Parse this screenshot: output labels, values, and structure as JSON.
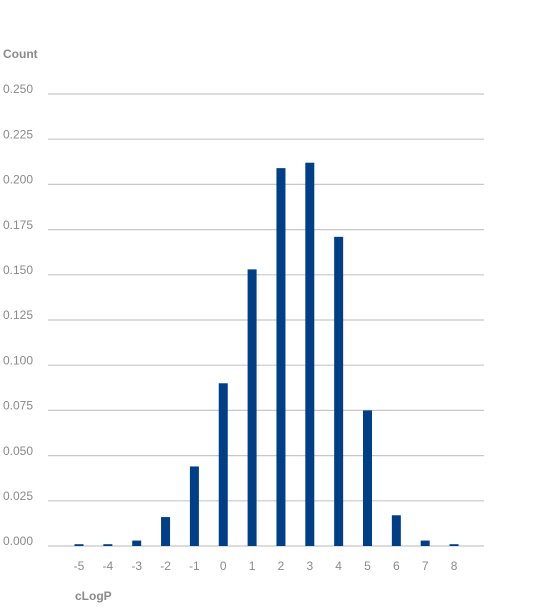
{
  "chart_data": {
    "type": "bar",
    "y_label": "Count",
    "x_label": "cLogP",
    "categories": [
      "-5",
      "-4",
      "-3",
      "-2",
      "-1",
      "0",
      "1",
      "2",
      "3",
      "4",
      "5",
      "6",
      "7",
      "8"
    ],
    "values": [
      0.001,
      0.001,
      0.003,
      0.016,
      0.044,
      0.09,
      0.153,
      0.209,
      0.212,
      0.171,
      0.075,
      0.017,
      0.003,
      0.001
    ],
    "color": "#003f87",
    "ylim": [
      0,
      0.25
    ],
    "yticks": [
      {
        "value": 0,
        "label": "0.000"
      },
      {
        "value": 0.025,
        "label": "0.025"
      },
      {
        "value": 0.05,
        "label": "0.050"
      },
      {
        "value": 0.075,
        "label": "0.075"
      },
      {
        "value": 0.1,
        "label": "0.100"
      },
      {
        "value": 0.125,
        "label": "0.125"
      },
      {
        "value": 0.15,
        "label": "0.150"
      },
      {
        "value": 0.175,
        "label": "0.175"
      },
      {
        "value": 0.2,
        "label": "0.200"
      },
      {
        "value": 0.225,
        "label": "0.225"
      },
      {
        "value": 0.25,
        "label": "0.250"
      }
    ],
    "grid": true
  }
}
